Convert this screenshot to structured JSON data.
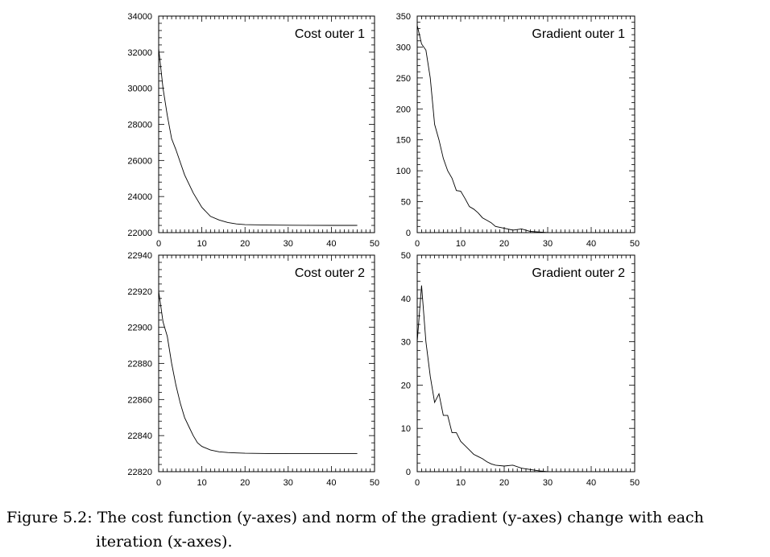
{
  "caption": {
    "label": "Figure 5.2:",
    "line1": "The cost function (y-axes) and norm of the gradient (y-axes) change with each",
    "line2": "iteration (x-axes)."
  },
  "chart_data": [
    {
      "type": "line",
      "title": "Cost outer 1",
      "xlabel": "",
      "ylabel": "",
      "xlim": [
        0,
        50
      ],
      "ylim": [
        22000,
        34000
      ],
      "xticks": [
        0,
        10,
        20,
        30,
        40,
        50
      ],
      "yticks": [
        22000,
        24000,
        26000,
        28000,
        30000,
        32000,
        34000
      ],
      "series": [
        {
          "name": "Cost outer 1",
          "x": [
            0,
            1,
            2,
            3,
            4,
            5,
            6,
            8,
            10,
            12,
            14,
            16,
            18,
            20,
            25,
            30,
            35,
            40,
            46
          ],
          "y": [
            32200,
            30000,
            28500,
            27200,
            26600,
            25900,
            25200,
            24200,
            23400,
            22900,
            22700,
            22560,
            22480,
            22440,
            22420,
            22410,
            22405,
            22400,
            22400
          ]
        }
      ]
    },
    {
      "type": "line",
      "title": "Gradient outer 1",
      "xlabel": "",
      "ylabel": "",
      "xlim": [
        0,
        50
      ],
      "ylim": [
        0,
        350
      ],
      "xticks": [
        0,
        10,
        20,
        30,
        40,
        50
      ],
      "yticks": [
        0,
        50,
        100,
        150,
        200,
        250,
        300,
        350
      ],
      "series": [
        {
          "name": "Gradient outer 1",
          "x": [
            0,
            1,
            2,
            3,
            4,
            5,
            6,
            7,
            8,
            9,
            10,
            11,
            12,
            13,
            14,
            15,
            16,
            17,
            18,
            20,
            22,
            24,
            26,
            28,
            30
          ],
          "y": [
            335,
            305,
            295,
            250,
            175,
            150,
            120,
            100,
            88,
            68,
            67,
            55,
            42,
            38,
            32,
            24,
            20,
            16,
            10,
            7,
            4,
            6,
            2,
            1,
            0
          ]
        }
      ]
    },
    {
      "type": "line",
      "title": "Cost outer 2",
      "xlabel": "",
      "ylabel": "",
      "xlim": [
        0,
        50
      ],
      "ylim": [
        22820,
        22940
      ],
      "xticks": [
        0,
        10,
        20,
        30,
        40,
        50
      ],
      "yticks": [
        22820,
        22840,
        22860,
        22880,
        22900,
        22920,
        22940
      ],
      "series": [
        {
          "name": "Cost outer 2",
          "x": [
            0,
            1,
            2,
            3,
            4,
            5,
            6,
            7,
            8,
            9,
            10,
            12,
            14,
            16,
            18,
            20,
            25,
            30,
            35,
            40,
            46
          ],
          "y": [
            22920,
            22903,
            22895,
            22880,
            22868,
            22858,
            22850,
            22845,
            22840,
            22836,
            22834,
            22832,
            22831,
            22830.6,
            22830.4,
            22830.2,
            22830.1,
            22830,
            22830,
            22830,
            22830
          ]
        }
      ]
    },
    {
      "type": "line",
      "title": "Gradient outer 2",
      "xlabel": "",
      "ylabel": "",
      "xlim": [
        0,
        50
      ],
      "ylim": [
        0,
        50
      ],
      "xticks": [
        0,
        10,
        20,
        30,
        40,
        50
      ],
      "yticks": [
        0,
        10,
        20,
        30,
        40,
        50
      ],
      "series": [
        {
          "name": "Gradient outer 2",
          "x": [
            0,
            1,
            2,
            3,
            4,
            5,
            6,
            7,
            8,
            9,
            10,
            11,
            12,
            13,
            14,
            15,
            16,
            17,
            18,
            20,
            22,
            24,
            26,
            28,
            30
          ],
          "y": [
            30,
            43,
            30,
            22,
            16,
            18,
            13,
            13,
            9,
            9,
            7,
            6,
            5,
            4,
            3.5,
            3,
            2.3,
            1.8,
            1.5,
            1.3,
            1.5,
            0.8,
            0.5,
            0.2,
            0
          ]
        }
      ]
    }
  ]
}
